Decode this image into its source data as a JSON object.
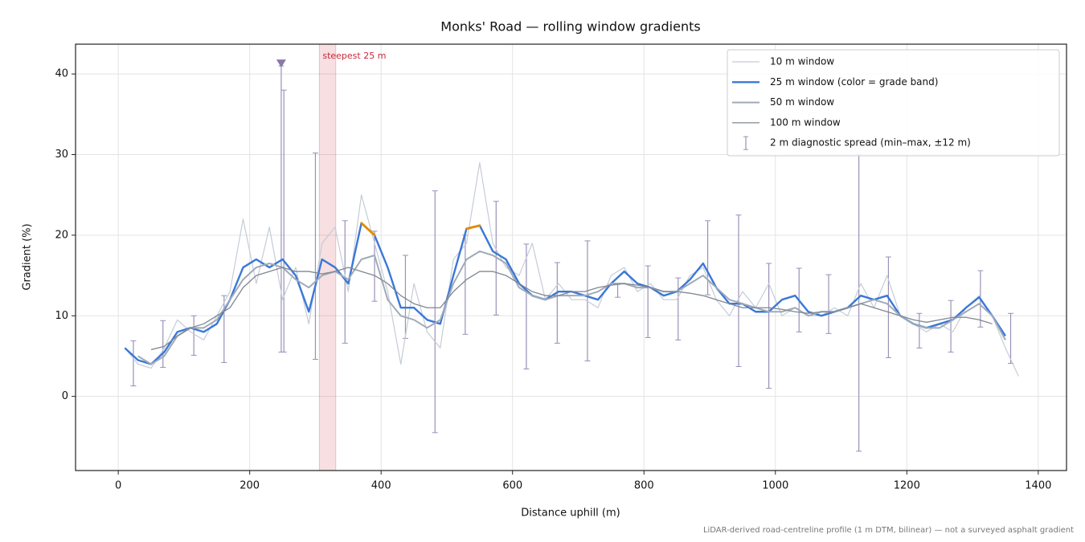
{
  "chart_data": {
    "type": "line",
    "title": "Monks' Road — rolling window gradients",
    "x_label": "Distance uphill (m)",
    "y_label": "Gradient (%)",
    "footnote": "LiDAR-derived road-centreline profile (1 m DTM, bilinear) — not a surveyed asphalt gradient",
    "xlim": [
      -65,
      1443
    ],
    "ylim": [
      -9.2,
      43.7
    ],
    "xticks": [
      0,
      200,
      400,
      600,
      800,
      1000,
      1200,
      1400
    ],
    "yticks": [
      0,
      10,
      20,
      30,
      40
    ],
    "grid": true,
    "legend": "upper right",
    "x": [
      10,
      30,
      50,
      70,
      90,
      110,
      130,
      150,
      170,
      190,
      210,
      230,
      250,
      270,
      290,
      310,
      330,
      350,
      370,
      390,
      410,
      430,
      450,
      470,
      490,
      510,
      530,
      550,
      570,
      590,
      610,
      630,
      650,
      670,
      690,
      710,
      730,
      750,
      770,
      790,
      810,
      830,
      850,
      870,
      890,
      910,
      930,
      950,
      970,
      990,
      1010,
      1030,
      1050,
      1070,
      1090,
      1110,
      1130,
      1150,
      1170,
      1190,
      1210,
      1230,
      1250,
      1270,
      1290,
      1310,
      1330,
      1350,
      1370
    ],
    "series": [
      {
        "name": "10 m window",
        "color": "#c5ccd6",
        "linewidth": 1.2,
        "values": [
          6,
          4,
          3.5,
          6,
          9.5,
          8,
          7,
          10,
          13,
          22,
          14,
          21,
          12,
          16,
          9,
          19,
          21,
          13,
          25,
          19,
          13,
          4,
          14,
          8,
          6,
          17,
          19,
          29,
          19,
          16,
          15,
          19,
          12,
          14,
          12,
          12,
          11,
          15,
          16,
          13,
          14,
          12,
          12,
          15,
          16,
          12,
          10,
          13,
          11,
          14,
          10,
          11,
          10,
          10,
          11,
          10,
          14,
          11,
          15,
          10,
          9,
          8,
          9,
          8,
          11,
          12.5,
          10,
          6,
          2.5
        ]
      },
      {
        "name": "25 m window (color = grade band)",
        "color": "#3a78d8",
        "linewidth": 2.4,
        "grade_bands": [
          {
            "from": 20,
            "color": "#e08a00"
          }
        ],
        "values": [
          6,
          4.5,
          4,
          5.5,
          8,
          8.5,
          8,
          9,
          12,
          16,
          17,
          16,
          17,
          15,
          10.5,
          17,
          16,
          14,
          21.5,
          20,
          16,
          11,
          11,
          9.5,
          9,
          15,
          20.8,
          21.2,
          18,
          17,
          14,
          12.5,
          12,
          13,
          13,
          12.5,
          12,
          14,
          15.5,
          14,
          13.5,
          12.5,
          13,
          14.5,
          16.5,
          13.5,
          11.5,
          11.5,
          10.5,
          10.5,
          12,
          12.5,
          10.5,
          10,
          10.5,
          11,
          12.5,
          12,
          12.5,
          10,
          9,
          8.5,
          9,
          9.5,
          11,
          12.3,
          10,
          7.5,
          null
        ]
      },
      {
        "name": "50 m window",
        "color": "#a0aab8",
        "linewidth": 2,
        "values": [
          null,
          5,
          4,
          5,
          7.5,
          8.5,
          8.5,
          9.5,
          12,
          14.5,
          16,
          16.5,
          16,
          14.5,
          13.5,
          15,
          15.5,
          14.5,
          17,
          17.5,
          12,
          10,
          9.5,
          8.5,
          9.5,
          14,
          17,
          18,
          17.5,
          16.5,
          13.5,
          12.5,
          12,
          12.5,
          12.5,
          12.5,
          13,
          14,
          14,
          13.5,
          13.5,
          13,
          13,
          14,
          15,
          13.5,
          12,
          11.5,
          11,
          10.5,
          10.5,
          11,
          10,
          10.5,
          10.5,
          11,
          11.5,
          12,
          11.5,
          10,
          9,
          8.5,
          8.5,
          9.5,
          10.5,
          11.5,
          10,
          7,
          null
        ]
      },
      {
        "name": "100 m window",
        "color": "#7f8791",
        "linewidth": 1.3,
        "values": [
          null,
          null,
          5.8,
          6.2,
          7.5,
          8.5,
          9,
          10,
          11,
          13.5,
          15,
          15.5,
          16,
          15.5,
          15.5,
          15.2,
          15.5,
          16,
          15.5,
          15,
          14,
          12.5,
          11.5,
          11,
          11,
          13,
          14.5,
          15.5,
          15.5,
          15,
          14,
          13,
          12.5,
          12.5,
          13,
          13,
          13.5,
          13.8,
          14,
          13.8,
          13.5,
          13,
          13,
          12.8,
          12.5,
          12,
          11.5,
          11,
          11,
          11,
          10.8,
          10.5,
          10.3,
          10.5,
          10.5,
          11,
          11.5,
          11,
          10.5,
          10,
          9.5,
          9.2,
          9.5,
          9.8,
          9.8,
          9.5,
          9,
          null,
          null
        ]
      }
    ],
    "errorbars": {
      "name": "2 m diagnostic spread (min–max, ±12 m)",
      "color": "#9a90b8",
      "x": [
        23,
        68,
        115,
        161,
        248,
        252,
        300,
        345,
        390,
        437,
        482,
        528,
        575,
        621,
        668,
        714,
        760,
        806,
        852,
        897,
        944,
        990,
        1036,
        1081,
        1127,
        1172,
        1219,
        1267,
        1312,
        1358
      ],
      "lows": [
        1.3,
        3.6,
        5.1,
        4.2,
        5.5,
        5.5,
        4.6,
        6.6,
        11.8,
        7.2,
        -4.5,
        7.7,
        10.1,
        3.4,
        6.6,
        4.4,
        12.3,
        7.3,
        7,
        12.6,
        3.7,
        1,
        8,
        7.8,
        -6.8,
        4.8,
        6,
        5.5,
        8.6,
        4.1
      ],
      "highs": [
        6.9,
        9.4,
        10,
        12.5,
        41,
        38,
        30.2,
        21.8,
        20.5,
        17.5,
        25.5,
        20,
        24.2,
        18.9,
        16.6,
        19.3,
        13.9,
        16.2,
        14.7,
        21.8,
        22.5,
        16.5,
        15.9,
        15.1,
        30,
        17.3,
        10.3,
        11.9,
        15.6,
        10.3
      ]
    },
    "marker": {
      "x": 248,
      "y": 41.3,
      "color": "#8a78a8"
    },
    "annotation": {
      "text": "steepest 25 m",
      "span": [
        306,
        331
      ],
      "color": "#c8283a"
    }
  }
}
